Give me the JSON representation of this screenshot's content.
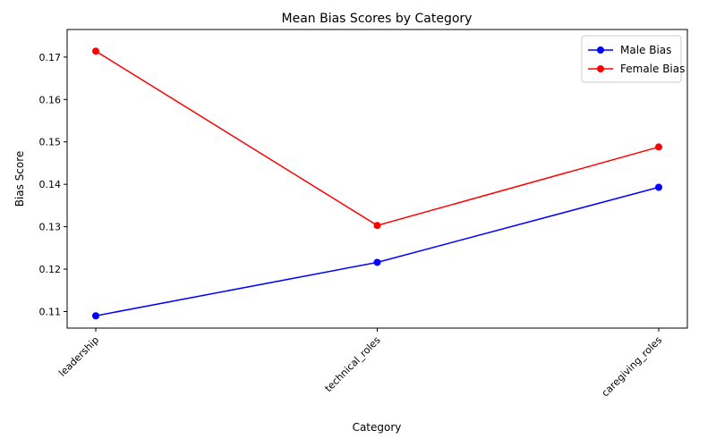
{
  "chart_data": {
    "type": "line",
    "title": "Mean Bias Scores by Category",
    "xlabel": "Category",
    "ylabel": "Bias Score",
    "categories": [
      "leadership",
      "technical_roles",
      "caregiving_roles"
    ],
    "ylim": [
      0.1061,
      0.1765
    ],
    "yticks": [
      "0.11",
      "0.12",
      "0.13",
      "0.14",
      "0.15",
      "0.16",
      "0.17"
    ],
    "grid": false,
    "legend_position": "top-right",
    "x_tick_rotation": "45deg",
    "marker": "circle",
    "series": [
      {
        "name": "Male Bias",
        "color": "#0000ff",
        "values": [
          0.109,
          0.1216,
          0.1393
        ]
      },
      {
        "name": "Female Bias",
        "color": "#ff0000",
        "values": [
          0.1714,
          0.1303,
          0.1488
        ]
      }
    ]
  }
}
